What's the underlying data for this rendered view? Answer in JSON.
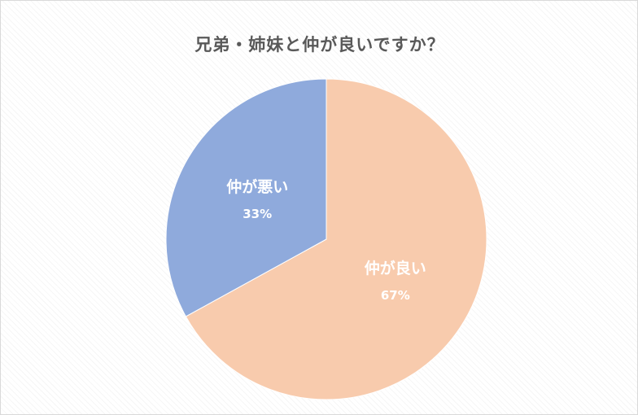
{
  "chart_data": {
    "type": "pie",
    "title": "兄弟・姉妹と仲が良いですか？",
    "slices": [
      {
        "label": "仲が良い",
        "value": 67,
        "percent_label": "67%",
        "color": "#f8cbad"
      },
      {
        "label": "仲が悪い",
        "value": 33,
        "percent_label": "33%",
        "color": "#8faadc"
      }
    ],
    "legend": "none",
    "data_labels": "category and percentage"
  }
}
